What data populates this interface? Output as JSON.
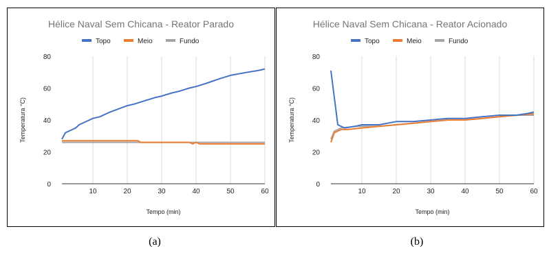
{
  "captions": [
    "(a)",
    "(b)"
  ],
  "chart_data": [
    {
      "type": "line",
      "title": "Hélice Naval Sem Chicana - Reator Parado",
      "xlabel": "Tempo (min)",
      "ylabel": "Temperatura °C)",
      "xlim": [
        1,
        60
      ],
      "ylim": [
        0,
        80
      ],
      "xticks": [
        10,
        20,
        30,
        40,
        50,
        60
      ],
      "yticks": [
        0,
        20,
        40,
        60,
        80
      ],
      "grid": "vertical",
      "legend": "top",
      "series": [
        {
          "name": "Topo",
          "color": "#4472c4",
          "x": [
            1,
            2,
            5,
            6,
            10,
            12,
            15,
            20,
            22,
            25,
            28,
            30,
            33,
            35,
            38,
            40,
            43,
            47,
            50,
            55,
            58,
            60
          ],
          "y": [
            28,
            32,
            35,
            37,
            41,
            42,
            45,
            49,
            50,
            52,
            54,
            55,
            57,
            58,
            60,
            61,
            63,
            66,
            68,
            70,
            71,
            72
          ]
        },
        {
          "name": "Meio",
          "color": "#ed7d31",
          "x": [
            1,
            23,
            24,
            38,
            39,
            40,
            41,
            60
          ],
          "y": [
            27,
            27,
            26,
            26,
            25,
            26,
            25,
            25
          ]
        },
        {
          "name": "Fundo",
          "color": "#a5a5a5",
          "x": [
            1,
            60
          ],
          "y": [
            26,
            26
          ]
        }
      ]
    },
    {
      "type": "line",
      "title": "Hélice Naval Sem Chicana - Reator Acionado",
      "xlabel": "Tempo (min)",
      "ylabel": "Temperatura °C)",
      "xlim": [
        1,
        60
      ],
      "ylim": [
        0,
        80
      ],
      "xticks": [
        10,
        20,
        30,
        40,
        50,
        60
      ],
      "yticks": [
        0,
        20,
        40,
        60,
        80
      ],
      "grid": "vertical",
      "legend": "top",
      "series": [
        {
          "name": "Topo",
          "color": "#4472c4",
          "x": [
            1,
            3,
            5,
            8,
            10,
            15,
            20,
            25,
            30,
            35,
            40,
            45,
            50,
            55,
            58,
            60
          ],
          "y": [
            71,
            37,
            35,
            36,
            37,
            37,
            39,
            39,
            40,
            41,
            41,
            42,
            43,
            43,
            44,
            45
          ]
        },
        {
          "name": "Meio",
          "color": "#ed7d31",
          "x": [
            1,
            2,
            4,
            6,
            10,
            15,
            20,
            25,
            30,
            35,
            40,
            45,
            50,
            55,
            60
          ],
          "y": [
            26,
            32,
            34,
            34,
            35,
            36,
            37,
            38,
            39,
            40,
            40,
            41,
            42,
            43,
            44
          ]
        },
        {
          "name": "Fundo",
          "color": "#a5a5a5",
          "x": [
            1,
            2,
            4,
            8,
            15,
            20,
            25,
            30,
            35,
            40,
            45,
            50,
            55,
            60
          ],
          "y": [
            28,
            33,
            35,
            36,
            36,
            37,
            38,
            39,
            40,
            40,
            41,
            42,
            43,
            43
          ]
        }
      ]
    }
  ]
}
